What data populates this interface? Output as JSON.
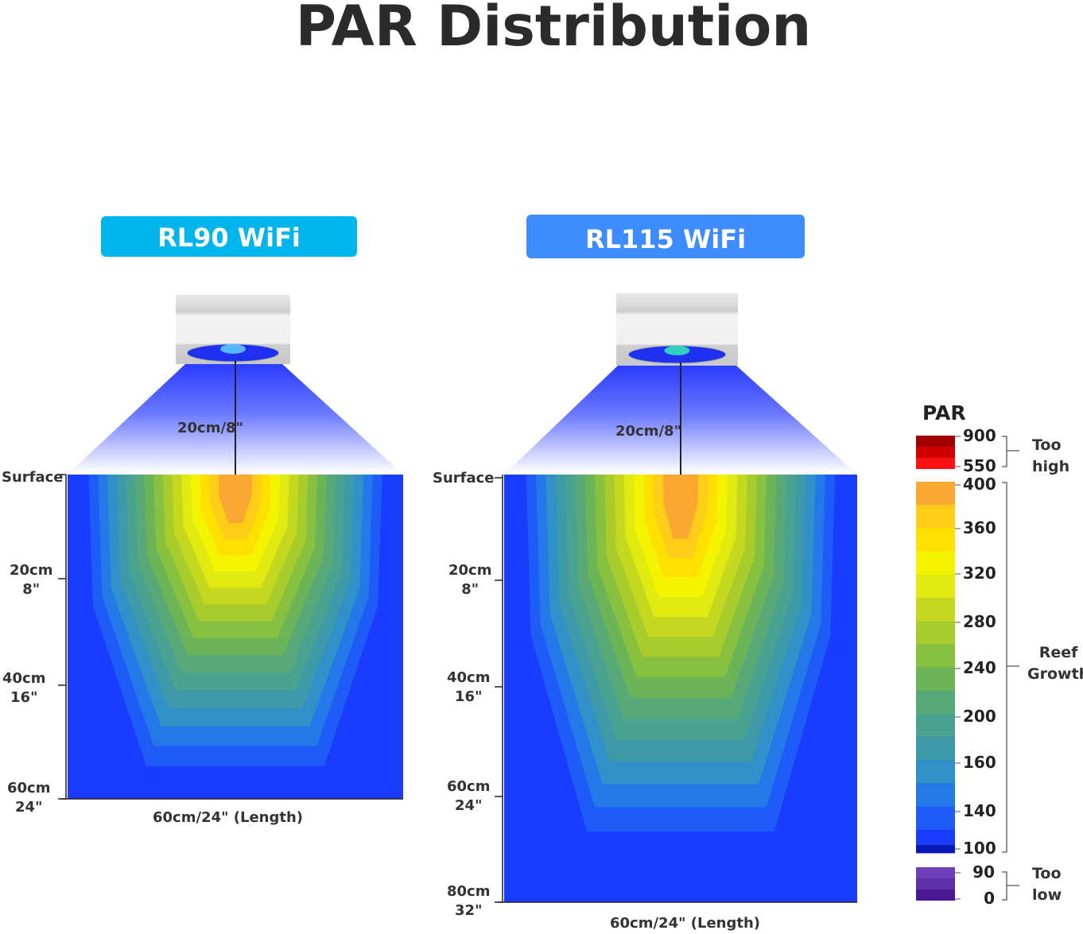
{
  "title": "PAR Distribution",
  "panels": [
    {
      "name": "RL90 WiFi",
      "color": "#00b4ec",
      "beam_label": "20cm/8\"",
      "surface": "Surface",
      "depths": [
        {
          "cm": "20cm",
          "in": "8\""
        },
        {
          "cm": "40cm",
          "in": "16\""
        },
        {
          "cm": "60cm",
          "in": "24\""
        }
      ],
      "length_label": "60cm/24\"  (Length)"
    },
    {
      "name": "RL115  WiFi",
      "color": "#3d8bff",
      "beam_label": "20cm/8\"",
      "surface": "Surface",
      "depths": [
        {
          "cm": "20cm",
          "in": "8\""
        },
        {
          "cm": "40cm",
          "in": "16\""
        },
        {
          "cm": "60cm",
          "in": "24\""
        },
        {
          "cm": "80cm",
          "in": "32\""
        }
      ],
      "length_label": "60cm/24\"  (Length)"
    }
  ],
  "legend": {
    "title": "PAR",
    "ticks": [
      "900",
      "550",
      "400",
      "360",
      "320",
      "280",
      "240",
      "200",
      "160",
      "140",
      "100",
      "90",
      "0"
    ],
    "too_high": [
      "Too",
      "high"
    ],
    "reef": [
      "Reef",
      "Growth"
    ],
    "too_low": [
      "Too",
      "low"
    ]
  },
  "colors": [
    "#1a3cff",
    "#1e5cf8",
    "#2478e8",
    "#3090c8",
    "#3e9aa8",
    "#4aa290",
    "#58a878",
    "#6cb458",
    "#88c040",
    "#a8cc2c",
    "#c4d820",
    "#e0ea10",
    "#f4f400",
    "#ffe000",
    "#ffcc18",
    "#f8a830"
  ]
}
